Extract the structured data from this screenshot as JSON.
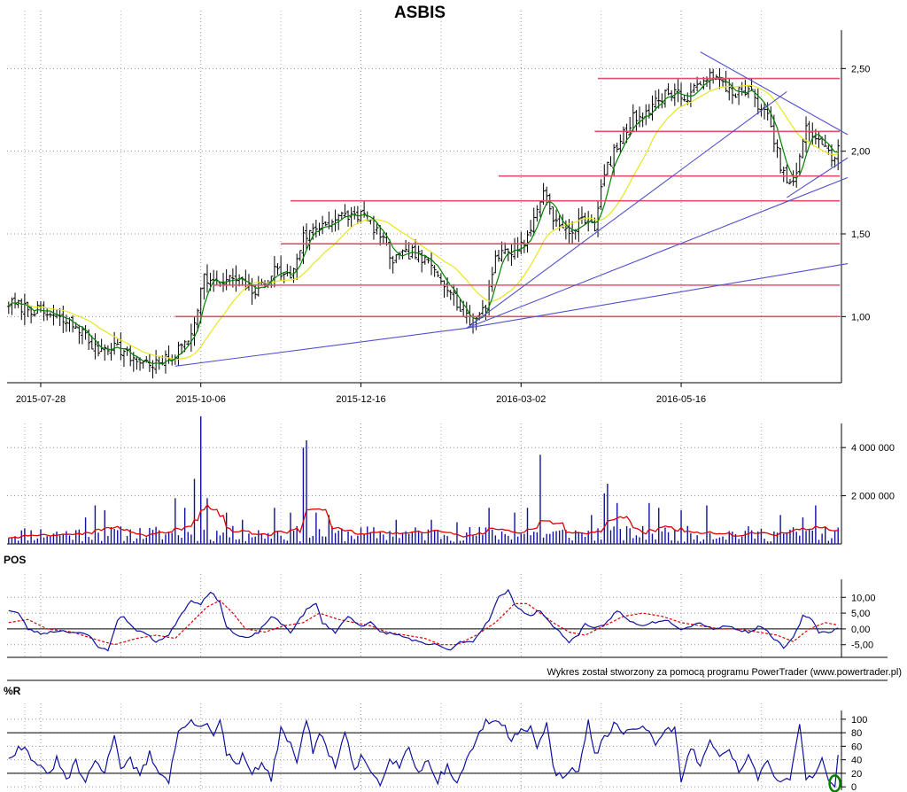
{
  "title": "ASBIS",
  "credit": "Wykres został stworzony za pomocą programu PowerTrader (www.powertrader.pl)",
  "colors": {
    "price": "#000000",
    "ma_fast": "#008000",
    "ma_slow": "#e6e61e",
    "hline": "#e0506a",
    "trendline": "#5050d0",
    "volume": "#1010a0",
    "volume_avg": "#e00000",
    "pos": "#1010a0",
    "pos_signal": "#e00000",
    "wr": "#1010a0",
    "marker": "#008000"
  },
  "chart_data": [
    {
      "type": "line",
      "name": "price",
      "title": "ASBIS",
      "x_labels": [
        "2015-07-28",
        "2015-10-06",
        "2015-12-16",
        "2016-03-02",
        "2016-05-16"
      ],
      "x_label_index": [
        10,
        60,
        110,
        160,
        210
      ],
      "n_bars": 260,
      "ylim": [
        0.6,
        2.7
      ],
      "y_ticks": [
        1.0,
        1.5,
        2.0,
        2.5
      ],
      "y_tick_labels": [
        "1,00",
        "1,50",
        "2,00",
        "2,50"
      ],
      "horizontal_levels": [
        {
          "y": 1.0,
          "from": 52
        },
        {
          "y": 1.19,
          "from": 64
        },
        {
          "y": 1.44,
          "from": 85
        },
        {
          "y": 1.7,
          "from": 88
        },
        {
          "y": 1.85,
          "from": 153
        },
        {
          "y": 2.12,
          "from": 183
        },
        {
          "y": 2.44,
          "from": 184
        }
      ],
      "trendlines": [
        {
          "x1": 52,
          "y1": 0.7,
          "x2": 143,
          "y2": 0.93
        },
        {
          "x1": 143,
          "y1": 0.93,
          "x2": 262,
          "y2": 1.32
        },
        {
          "x1": 143,
          "y1": 0.93,
          "x2": 262,
          "y2": 1.84
        },
        {
          "x1": 143,
          "y1": 0.93,
          "x2": 243,
          "y2": 2.36
        },
        {
          "x1": 216,
          "y1": 2.6,
          "x2": 262,
          "y2": 2.1
        },
        {
          "x1": 243,
          "y1": 1.72,
          "x2": 262,
          "y2": 1.96
        }
      ],
      "anchors": [
        [
          0,
          1.08
        ],
        [
          8,
          1.04
        ],
        [
          14,
          1.0
        ],
        [
          22,
          0.93
        ],
        [
          27,
          0.8
        ],
        [
          33,
          0.83
        ],
        [
          38,
          0.75
        ],
        [
          43,
          0.72
        ],
        [
          47,
          0.71
        ],
        [
          52,
          0.77
        ],
        [
          57,
          0.9
        ],
        [
          61,
          1.24
        ],
        [
          65,
          1.19
        ],
        [
          70,
          1.23
        ],
        [
          77,
          1.15
        ],
        [
          83,
          1.28
        ],
        [
          88,
          1.24
        ],
        [
          92,
          1.48
        ],
        [
          98,
          1.56
        ],
        [
          104,
          1.6
        ],
        [
          110,
          1.62
        ],
        [
          115,
          1.52
        ],
        [
          120,
          1.34
        ],
        [
          126,
          1.39
        ],
        [
          132,
          1.3
        ],
        [
          138,
          1.17
        ],
        [
          142,
          1.0
        ],
        [
          145,
          0.96
        ],
        [
          149,
          1.08
        ],
        [
          152,
          1.37
        ],
        [
          157,
          1.4
        ],
        [
          162,
          1.47
        ],
        [
          167,
          1.77
        ],
        [
          171,
          1.56
        ],
        [
          175,
          1.5
        ],
        [
          180,
          1.6
        ],
        [
          183,
          1.55
        ],
        [
          186,
          1.86
        ],
        [
          190,
          2.03
        ],
        [
          195,
          2.2
        ],
        [
          200,
          2.25
        ],
        [
          204,
          2.33
        ],
        [
          208,
          2.37
        ],
        [
          212,
          2.3
        ],
        [
          217,
          2.46
        ],
        [
          222,
          2.42
        ],
        [
          226,
          2.36
        ],
        [
          232,
          2.35
        ],
        [
          237,
          2.2
        ],
        [
          242,
          1.85
        ],
        [
          245,
          1.79
        ],
        [
          249,
          2.13
        ],
        [
          253,
          2.08
        ],
        [
          257,
          1.95
        ],
        [
          260,
          2.05
        ]
      ]
    },
    {
      "type": "bar",
      "name": "volume",
      "ylim": [
        0,
        5000000
      ],
      "y_ticks": [
        2000000,
        4000000
      ],
      "y_tick_labels": [
        "2 000 000",
        "4 000 000"
      ],
      "base": 300000,
      "spikes": [
        [
          24,
          1100000
        ],
        [
          27,
          1600000
        ],
        [
          30,
          1400000
        ],
        [
          52,
          1900000
        ],
        [
          55,
          1500000
        ],
        [
          58,
          2700000
        ],
        [
          60,
          5300000
        ],
        [
          62,
          1900000
        ],
        [
          68,
          1300000
        ],
        [
          73,
          1000000
        ],
        [
          83,
          1500000
        ],
        [
          88,
          1300000
        ],
        [
          92,
          4000000
        ],
        [
          93,
          4300000
        ],
        [
          96,
          1300000
        ],
        [
          100,
          1200000
        ],
        [
          121,
          1000000
        ],
        [
          132,
          1000000
        ],
        [
          140,
          900000
        ],
        [
          150,
          1500000
        ],
        [
          158,
          1300000
        ],
        [
          162,
          1500000
        ],
        [
          166,
          3700000
        ],
        [
          182,
          1200000
        ],
        [
          186,
          2100000
        ],
        [
          187,
          2500000
        ],
        [
          190,
          1700000
        ],
        [
          200,
          1700000
        ],
        [
          203,
          1500000
        ],
        [
          210,
          1400000
        ],
        [
          218,
          1600000
        ],
        [
          241,
          1200000
        ],
        [
          248,
          1100000
        ],
        [
          252,
          1600000
        ]
      ]
    },
    {
      "type": "line",
      "name": "POS",
      "title": "POS",
      "ylim": [
        -9,
        14
      ],
      "y_ticks": [
        10,
        5,
        0,
        -5
      ],
      "y_tick_labels": [
        "10,00",
        "5,00",
        "0,00",
        "-5,00"
      ],
      "anchors": [
        [
          0,
          6
        ],
        [
          3,
          5
        ],
        [
          6,
          0
        ],
        [
          10,
          -1.5
        ],
        [
          16,
          -0.5
        ],
        [
          20,
          -1
        ],
        [
          25,
          -2
        ],
        [
          28,
          -5.5
        ],
        [
          31,
          -7
        ],
        [
          34,
          3
        ],
        [
          36,
          4
        ],
        [
          39,
          0
        ],
        [
          42,
          -1
        ],
        [
          46,
          -4
        ],
        [
          50,
          -2
        ],
        [
          54,
          5
        ],
        [
          57,
          9
        ],
        [
          60,
          8
        ],
        [
          63,
          12
        ],
        [
          66,
          8
        ],
        [
          68,
          1
        ],
        [
          71,
          -2
        ],
        [
          75,
          -3
        ],
        [
          78,
          -1
        ],
        [
          82,
          4
        ],
        [
          86,
          1
        ],
        [
          88,
          -1
        ],
        [
          93,
          6
        ],
        [
          96,
          8
        ],
        [
          98,
          2
        ],
        [
          102,
          -1
        ],
        [
          106,
          4
        ],
        [
          110,
          1
        ],
        [
          113,
          2
        ],
        [
          116,
          -1
        ],
        [
          120,
          -1.5
        ],
        [
          125,
          -3
        ],
        [
          130,
          -5
        ],
        [
          134,
          -5
        ],
        [
          138,
          -7
        ],
        [
          141,
          -4
        ],
        [
          145,
          -4
        ],
        [
          150,
          3
        ],
        [
          153,
          10
        ],
        [
          156,
          12
        ],
        [
          158,
          8
        ],
        [
          160,
          6
        ],
        [
          163,
          4
        ],
        [
          166,
          6
        ],
        [
          168,
          3
        ],
        [
          172,
          -1
        ],
        [
          175,
          -4
        ],
        [
          178,
          -2
        ],
        [
          180,
          2
        ],
        [
          183,
          0
        ],
        [
          186,
          1
        ],
        [
          190,
          6
        ],
        [
          193,
          3
        ],
        [
          197,
          1
        ],
        [
          201,
          2
        ],
        [
          205,
          3
        ],
        [
          207,
          2
        ],
        [
          210,
          0
        ],
        [
          213,
          1
        ],
        [
          216,
          2
        ],
        [
          220,
          0
        ],
        [
          224,
          1
        ],
        [
          227,
          0
        ],
        [
          231,
          -1
        ],
        [
          235,
          1
        ],
        [
          238,
          -2
        ],
        [
          242,
          -6
        ],
        [
          245,
          -3
        ],
        [
          248,
          4
        ],
        [
          251,
          3
        ],
        [
          253,
          -1
        ],
        [
          256,
          -1
        ],
        [
          260,
          0.5
        ]
      ],
      "signal_anchors": [
        [
          0,
          2
        ],
        [
          6,
          3
        ],
        [
          12,
          0
        ],
        [
          20,
          -1
        ],
        [
          26,
          -3
        ],
        [
          33,
          -5
        ],
        [
          40,
          -3
        ],
        [
          46,
          -2
        ],
        [
          52,
          -3
        ],
        [
          57,
          2
        ],
        [
          62,
          7
        ],
        [
          66,
          9
        ],
        [
          70,
          5
        ],
        [
          74,
          0
        ],
        [
          80,
          -1
        ],
        [
          86,
          1
        ],
        [
          92,
          2
        ],
        [
          97,
          5
        ],
        [
          103,
          3
        ],
        [
          108,
          2
        ],
        [
          113,
          1
        ],
        [
          118,
          -1
        ],
        [
          124,
          -2
        ],
        [
          130,
          -3
        ],
        [
          135,
          -5
        ],
        [
          140,
          -5
        ],
        [
          146,
          -2
        ],
        [
          152,
          2
        ],
        [
          158,
          8
        ],
        [
          162,
          8
        ],
        [
          166,
          5
        ],
        [
          170,
          2
        ],
        [
          175,
          -1
        ],
        [
          180,
          -2
        ],
        [
          186,
          1
        ],
        [
          192,
          4
        ],
        [
          198,
          5
        ],
        [
          204,
          4
        ],
        [
          210,
          2
        ],
        [
          216,
          1
        ],
        [
          222,
          0
        ],
        [
          228,
          0
        ],
        [
          234,
          -1
        ],
        [
          240,
          -2
        ],
        [
          245,
          -4
        ],
        [
          250,
          0
        ],
        [
          255,
          2
        ],
        [
          260,
          1
        ]
      ]
    },
    {
      "type": "line",
      "name": "%R",
      "title": "%R",
      "ylim": [
        -5,
        105
      ],
      "y_ticks": [
        100,
        80,
        60,
        40,
        20,
        0
      ],
      "y_tick_labels": [
        "100",
        "80",
        "60",
        "40",
        "20",
        "0"
      ],
      "ref_lines": [
        80,
        20
      ],
      "anchors": [
        [
          0,
          45
        ],
        [
          4,
          60
        ],
        [
          8,
          40
        ],
        [
          12,
          15
        ],
        [
          15,
          40
        ],
        [
          18,
          10
        ],
        [
          21,
          35
        ],
        [
          24,
          5
        ],
        [
          27,
          40
        ],
        [
          30,
          20
        ],
        [
          33,
          80
        ],
        [
          35,
          30
        ],
        [
          38,
          40
        ],
        [
          41,
          15
        ],
        [
          44,
          50
        ],
        [
          47,
          20
        ],
        [
          50,
          10
        ],
        [
          53,
          80
        ],
        [
          56,
          95
        ],
        [
          59,
          90
        ],
        [
          62,
          98
        ],
        [
          64,
          75
        ],
        [
          66,
          95
        ],
        [
          68,
          50
        ],
        [
          71,
          30
        ],
        [
          73,
          45
        ],
        [
          76,
          20
        ],
        [
          79,
          35
        ],
        [
          82,
          10
        ],
        [
          85,
          85
        ],
        [
          88,
          60
        ],
        [
          90,
          40
        ],
        [
          93,
          100
        ],
        [
          95,
          50
        ],
        [
          97,
          80
        ],
        [
          99,
          60
        ],
        [
          102,
          30
        ],
        [
          105,
          80
        ],
        [
          108,
          20
        ],
        [
          110,
          45
        ],
        [
          113,
          25
        ],
        [
          116,
          5
        ],
        [
          119,
          45
        ],
        [
          122,
          30
        ],
        [
          125,
          60
        ],
        [
          128,
          20
        ],
        [
          131,
          40
        ],
        [
          134,
          10
        ],
        [
          137,
          30
        ],
        [
          140,
          5
        ],
        [
          143,
          40
        ],
        [
          146,
          70
        ],
        [
          149,
          95
        ],
        [
          152,
          100
        ],
        [
          155,
          85
        ],
        [
          157,
          70
        ],
        [
          160,
          90
        ],
        [
          163,
          85
        ],
        [
          165,
          60
        ],
        [
          168,
          90
        ],
        [
          170,
          30
        ],
        [
          172,
          15
        ],
        [
          175,
          25
        ],
        [
          178,
          20
        ],
        [
          181,
          100
        ],
        [
          183,
          45
        ],
        [
          186,
          70
        ],
        [
          189,
          90
        ],
        [
          192,
          80
        ],
        [
          195,
          90
        ],
        [
          199,
          85
        ],
        [
          202,
          60
        ],
        [
          205,
          80
        ],
        [
          208,
          90
        ],
        [
          210,
          5
        ],
        [
          213,
          60
        ],
        [
          216,
          30
        ],
        [
          219,
          75
        ],
        [
          222,
          40
        ],
        [
          225,
          60
        ],
        [
          228,
          20
        ],
        [
          231,
          50
        ],
        [
          234,
          10
        ],
        [
          237,
          40
        ],
        [
          240,
          5
        ],
        [
          244,
          15
        ],
        [
          247,
          90
        ],
        [
          249,
          15
        ],
        [
          252,
          20
        ],
        [
          254,
          40
        ],
        [
          256,
          10
        ],
        [
          258,
          5
        ],
        [
          260,
          98
        ]
      ],
      "marker_at": 258
    }
  ]
}
